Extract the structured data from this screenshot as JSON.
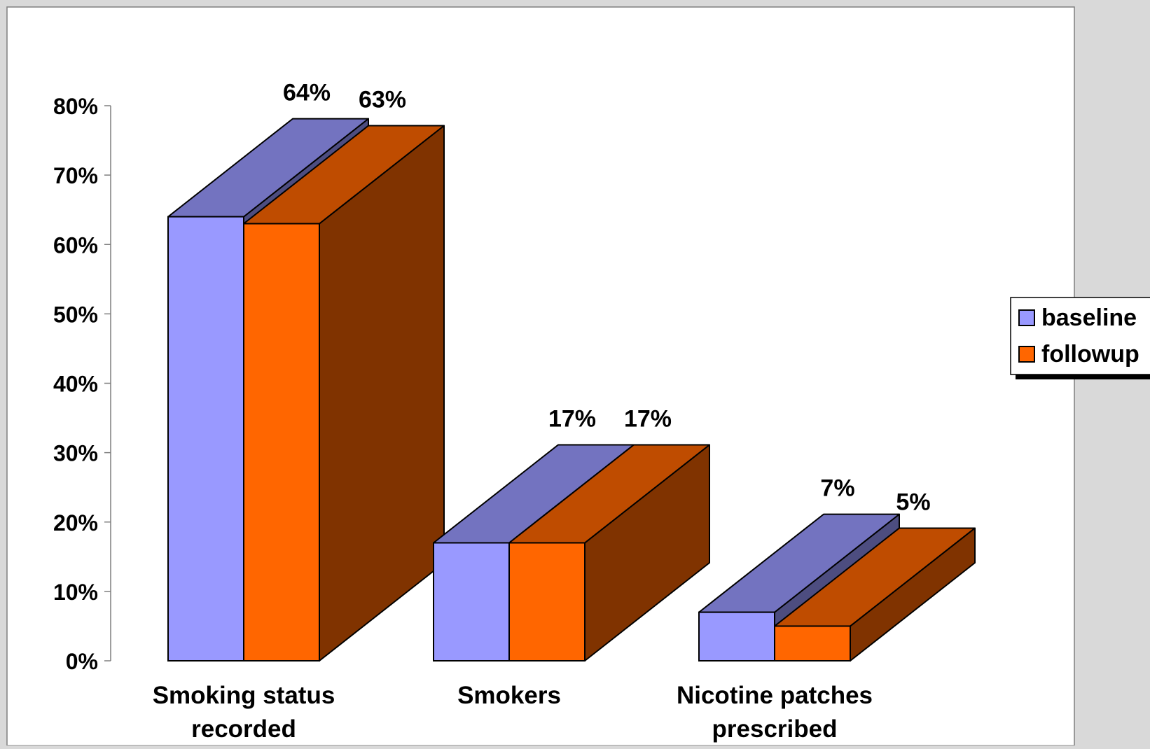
{
  "chart_data": {
    "type": "bar",
    "categories": [
      "Smoking status|recorded",
      "Smokers",
      "Nicotine patches|prescribed"
    ],
    "series": [
      {
        "name": "baseline",
        "values": [
          64,
          17,
          7
        ],
        "labels": [
          "64%",
          "17%",
          "7%"
        ]
      },
      {
        "name": "followup",
        "values": [
          63,
          17,
          5
        ],
        "labels": [
          "63%",
          "17%",
          "5%"
        ]
      }
    ],
    "ylim": [
      0,
      80
    ],
    "yticks": [
      "0%",
      "10%",
      "20%",
      "30%",
      "40%",
      "50%",
      "60%",
      "70%",
      "80%"
    ],
    "legend_position": "right",
    "colors": {
      "baseline_front": "#9999ff",
      "baseline_top": "#7373c0",
      "baseline_side": "#4d4d80",
      "followup_front": "#ff6600",
      "followup_top": "#bf4c00",
      "followup_side": "#803300",
      "plot_bg": "#ffffff",
      "page_bg": "#d9d9d9"
    }
  }
}
